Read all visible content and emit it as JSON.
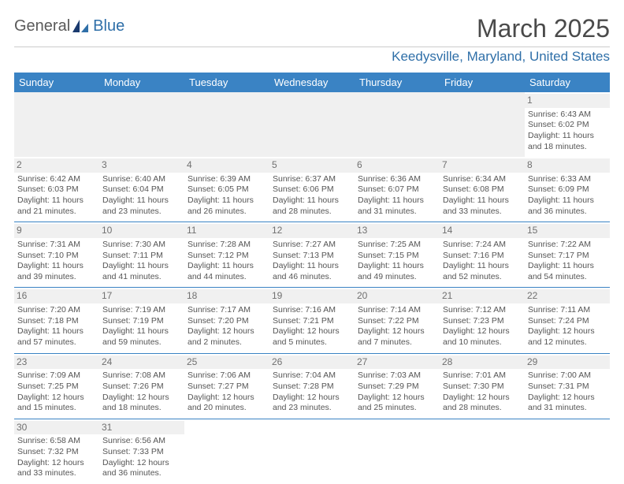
{
  "brand": {
    "part1": "General",
    "part2": "Blue"
  },
  "title": "March 2025",
  "location": "Keedysville, Maryland, United States",
  "colors": {
    "header_bg": "#3a83c4",
    "header_text": "#ffffff",
    "accent": "#2f6fa8",
    "daynum_bg": "#f0f0f0",
    "body_text": "#555555",
    "title_text": "#4a4a4a"
  },
  "day_headers": [
    "Sunday",
    "Monday",
    "Tuesday",
    "Wednesday",
    "Thursday",
    "Friday",
    "Saturday"
  ],
  "weeks": [
    [
      null,
      null,
      null,
      null,
      null,
      null,
      {
        "n": "1",
        "sunrise": "6:43 AM",
        "sunset": "6:02 PM",
        "dl1": "Daylight: 11 hours",
        "dl2": "and 18 minutes."
      }
    ],
    [
      {
        "n": "2",
        "sunrise": "6:42 AM",
        "sunset": "6:03 PM",
        "dl1": "Daylight: 11 hours",
        "dl2": "and 21 minutes."
      },
      {
        "n": "3",
        "sunrise": "6:40 AM",
        "sunset": "6:04 PM",
        "dl1": "Daylight: 11 hours",
        "dl2": "and 23 minutes."
      },
      {
        "n": "4",
        "sunrise": "6:39 AM",
        "sunset": "6:05 PM",
        "dl1": "Daylight: 11 hours",
        "dl2": "and 26 minutes."
      },
      {
        "n": "5",
        "sunrise": "6:37 AM",
        "sunset": "6:06 PM",
        "dl1": "Daylight: 11 hours",
        "dl2": "and 28 minutes."
      },
      {
        "n": "6",
        "sunrise": "6:36 AM",
        "sunset": "6:07 PM",
        "dl1": "Daylight: 11 hours",
        "dl2": "and 31 minutes."
      },
      {
        "n": "7",
        "sunrise": "6:34 AM",
        "sunset": "6:08 PM",
        "dl1": "Daylight: 11 hours",
        "dl2": "and 33 minutes."
      },
      {
        "n": "8",
        "sunrise": "6:33 AM",
        "sunset": "6:09 PM",
        "dl1": "Daylight: 11 hours",
        "dl2": "and 36 minutes."
      }
    ],
    [
      {
        "n": "9",
        "sunrise": "7:31 AM",
        "sunset": "7:10 PM",
        "dl1": "Daylight: 11 hours",
        "dl2": "and 39 minutes."
      },
      {
        "n": "10",
        "sunrise": "7:30 AM",
        "sunset": "7:11 PM",
        "dl1": "Daylight: 11 hours",
        "dl2": "and 41 minutes."
      },
      {
        "n": "11",
        "sunrise": "7:28 AM",
        "sunset": "7:12 PM",
        "dl1": "Daylight: 11 hours",
        "dl2": "and 44 minutes."
      },
      {
        "n": "12",
        "sunrise": "7:27 AM",
        "sunset": "7:13 PM",
        "dl1": "Daylight: 11 hours",
        "dl2": "and 46 minutes."
      },
      {
        "n": "13",
        "sunrise": "7:25 AM",
        "sunset": "7:15 PM",
        "dl1": "Daylight: 11 hours",
        "dl2": "and 49 minutes."
      },
      {
        "n": "14",
        "sunrise": "7:24 AM",
        "sunset": "7:16 PM",
        "dl1": "Daylight: 11 hours",
        "dl2": "and 52 minutes."
      },
      {
        "n": "15",
        "sunrise": "7:22 AM",
        "sunset": "7:17 PM",
        "dl1": "Daylight: 11 hours",
        "dl2": "and 54 minutes."
      }
    ],
    [
      {
        "n": "16",
        "sunrise": "7:20 AM",
        "sunset": "7:18 PM",
        "dl1": "Daylight: 11 hours",
        "dl2": "and 57 minutes."
      },
      {
        "n": "17",
        "sunrise": "7:19 AM",
        "sunset": "7:19 PM",
        "dl1": "Daylight: 11 hours",
        "dl2": "and 59 minutes."
      },
      {
        "n": "18",
        "sunrise": "7:17 AM",
        "sunset": "7:20 PM",
        "dl1": "Daylight: 12 hours",
        "dl2": "and 2 minutes."
      },
      {
        "n": "19",
        "sunrise": "7:16 AM",
        "sunset": "7:21 PM",
        "dl1": "Daylight: 12 hours",
        "dl2": "and 5 minutes."
      },
      {
        "n": "20",
        "sunrise": "7:14 AM",
        "sunset": "7:22 PM",
        "dl1": "Daylight: 12 hours",
        "dl2": "and 7 minutes."
      },
      {
        "n": "21",
        "sunrise": "7:12 AM",
        "sunset": "7:23 PM",
        "dl1": "Daylight: 12 hours",
        "dl2": "and 10 minutes."
      },
      {
        "n": "22",
        "sunrise": "7:11 AM",
        "sunset": "7:24 PM",
        "dl1": "Daylight: 12 hours",
        "dl2": "and 12 minutes."
      }
    ],
    [
      {
        "n": "23",
        "sunrise": "7:09 AM",
        "sunset": "7:25 PM",
        "dl1": "Daylight: 12 hours",
        "dl2": "and 15 minutes."
      },
      {
        "n": "24",
        "sunrise": "7:08 AM",
        "sunset": "7:26 PM",
        "dl1": "Daylight: 12 hours",
        "dl2": "and 18 minutes."
      },
      {
        "n": "25",
        "sunrise": "7:06 AM",
        "sunset": "7:27 PM",
        "dl1": "Daylight: 12 hours",
        "dl2": "and 20 minutes."
      },
      {
        "n": "26",
        "sunrise": "7:04 AM",
        "sunset": "7:28 PM",
        "dl1": "Daylight: 12 hours",
        "dl2": "and 23 minutes."
      },
      {
        "n": "27",
        "sunrise": "7:03 AM",
        "sunset": "7:29 PM",
        "dl1": "Daylight: 12 hours",
        "dl2": "and 25 minutes."
      },
      {
        "n": "28",
        "sunrise": "7:01 AM",
        "sunset": "7:30 PM",
        "dl1": "Daylight: 12 hours",
        "dl2": "and 28 minutes."
      },
      {
        "n": "29",
        "sunrise": "7:00 AM",
        "sunset": "7:31 PM",
        "dl1": "Daylight: 12 hours",
        "dl2": "and 31 minutes."
      }
    ],
    [
      {
        "n": "30",
        "sunrise": "6:58 AM",
        "sunset": "7:32 PM",
        "dl1": "Daylight: 12 hours",
        "dl2": "and 33 minutes."
      },
      {
        "n": "31",
        "sunrise": "6:56 AM",
        "sunset": "7:33 PM",
        "dl1": "Daylight: 12 hours",
        "dl2": "and 36 minutes."
      },
      null,
      null,
      null,
      null,
      null
    ]
  ]
}
